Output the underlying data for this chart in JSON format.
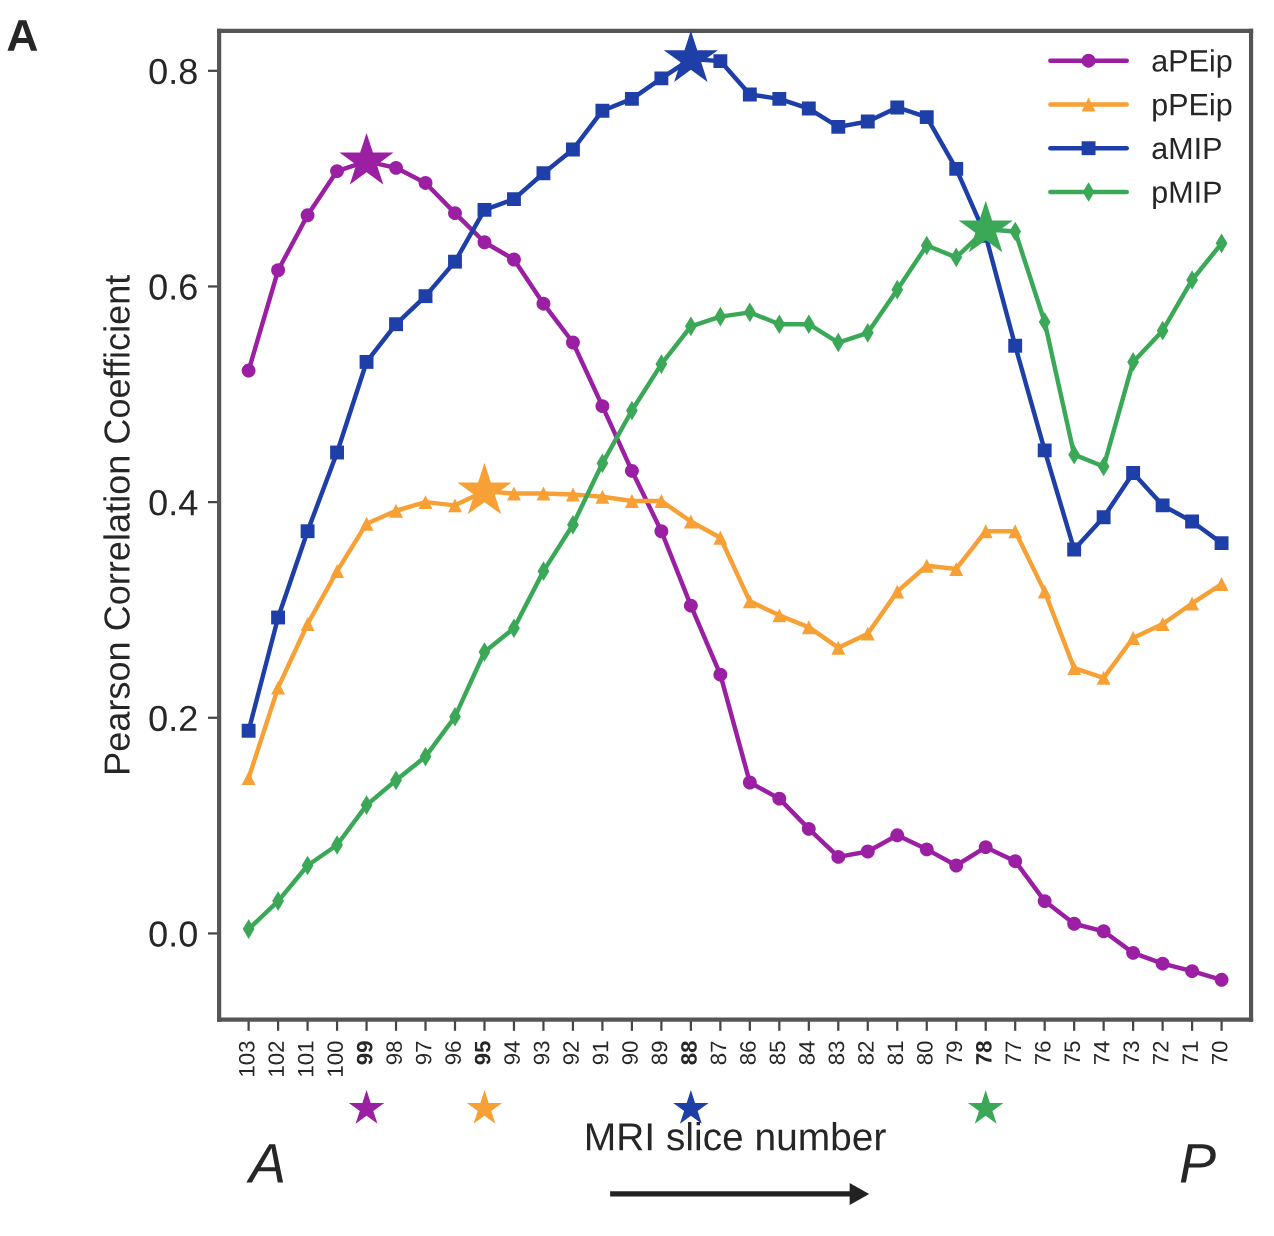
{
  "chart_data": {
    "type": "line",
    "ylabel": "Pearson Correlation Coefficient",
    "xlabel": "MRI slice number",
    "categories": [
      "103",
      "102",
      "101",
      "100",
      "99",
      "98",
      "97",
      "96",
      "95",
      "94",
      "93",
      "92",
      "91",
      "90",
      "89",
      "88",
      "87",
      "86",
      "85",
      "84",
      "83",
      "82",
      "81",
      "80",
      "79",
      "78",
      "77",
      "76",
      "75",
      "74",
      "73",
      "72",
      "71",
      "70"
    ],
    "ylim": [
      -0.08,
      0.837
    ],
    "yticks": [
      {
        "value": 0,
        "label": "0.0"
      },
      {
        "value": 0.2,
        "label": "0.2"
      },
      {
        "value": 0.4,
        "label": "0.4"
      },
      {
        "value": 0.6,
        "label": "0.6"
      },
      {
        "value": 0.8,
        "label": "0.8"
      }
    ],
    "legend": "top right",
    "grid": false,
    "line_style": "solid",
    "series": [
      {
        "name": "aPEip",
        "color": "#9b1fa3",
        "marker": "circle",
        "values": [
          0.522,
          0.615,
          0.666,
          0.707,
          0.716,
          0.71,
          0.696,
          0.668,
          0.641,
          0.625,
          0.584,
          0.548,
          0.489,
          0.429,
          0.373,
          0.304,
          0.24,
          0.14,
          0.125,
          0.097,
          0.071,
          0.076,
          0.091,
          0.078,
          0.063,
          0.08,
          0.067,
          0.03,
          0.009,
          0.002,
          -0.018,
          -0.028,
          -0.035,
          -0.043
        ]
      },
      {
        "name": "pPEip",
        "color": "#f7a035",
        "marker": "triangle",
        "values": [
          0.144,
          0.228,
          0.287,
          0.336,
          0.38,
          0.392,
          0.4,
          0.397,
          0.41,
          0.408,
          0.408,
          0.407,
          0.405,
          0.401,
          0.401,
          0.382,
          0.367,
          0.308,
          0.295,
          0.284,
          0.265,
          0.278,
          0.317,
          0.341,
          0.338,
          0.373,
          0.373,
          0.317,
          0.246,
          0.237,
          0.274,
          0.287,
          0.306,
          0.324
        ]
      },
      {
        "name": "aMIP",
        "color": "#1f3fa8",
        "marker": "square",
        "values": [
          0.188,
          0.293,
          0.373,
          0.446,
          0.53,
          0.565,
          0.591,
          0.623,
          0.671,
          0.681,
          0.705,
          0.727,
          0.763,
          0.774,
          0.793,
          0.811,
          0.809,
          0.778,
          0.774,
          0.765,
          0.748,
          0.753,
          0.766,
          0.757,
          0.709,
          0.647,
          0.545,
          0.448,
          0.356,
          0.386,
          0.427,
          0.397,
          0.382,
          0.362
        ]
      },
      {
        "name": "pMIP",
        "color": "#3aa857",
        "marker": "diamond",
        "values": [
          0.004,
          0.03,
          0.063,
          0.082,
          0.119,
          0.142,
          0.164,
          0.201,
          0.261,
          0.283,
          0.336,
          0.379,
          0.436,
          0.485,
          0.528,
          0.563,
          0.572,
          0.576,
          0.565,
          0.565,
          0.548,
          0.557,
          0.597,
          0.638,
          0.627,
          0.653,
          0.651,
          0.567,
          0.444,
          0.433,
          0.53,
          0.559,
          0.606,
          0.64
        ]
      },
      {
        "type": "scatter",
        "color": "#9b1fa3",
        "marker": "star",
        "x": [
          "99"
        ],
        "values": [
          0.716
        ]
      },
      {
        "type": "scatter",
        "color": "#f7a035",
        "marker": "star",
        "x": [
          "95"
        ],
        "values": [
          0.41
        ]
      },
      {
        "type": "scatter",
        "color": "#1f3fa8",
        "marker": "star",
        "x": [
          "88"
        ],
        "values": [
          0.811
        ]
      },
      {
        "type": "scatter",
        "color": "#3aa857",
        "marker": "star",
        "x": [
          "78"
        ],
        "values": [
          0.653
        ]
      }
    ],
    "annotations": [
      "A",
      "A",
      "P"
    ]
  }
}
